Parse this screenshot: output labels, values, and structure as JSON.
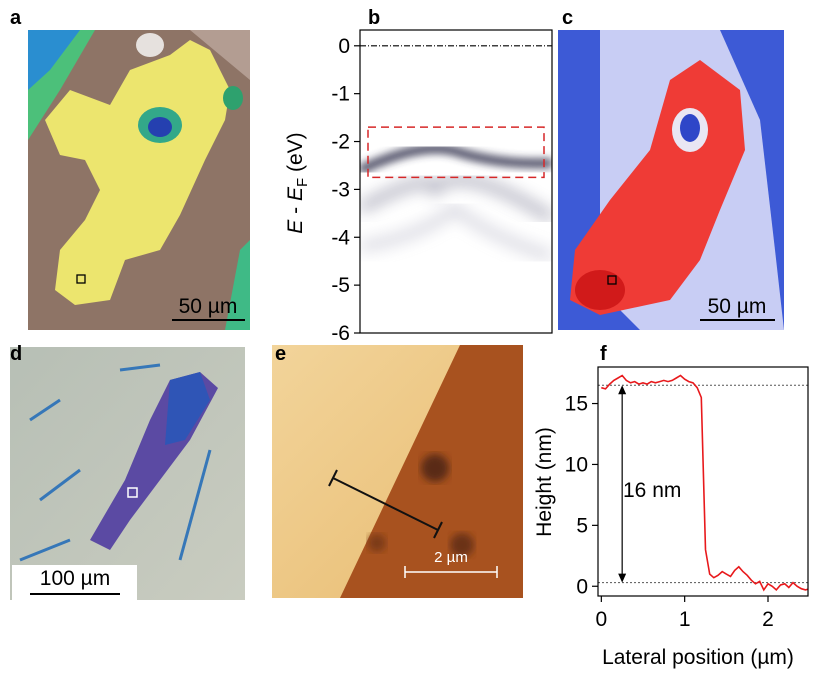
{
  "panel_labels": [
    "a",
    "b",
    "c",
    "d",
    "e",
    "f"
  ],
  "scale_bars": [
    "50 µm",
    "50 µm",
    "100 µm",
    "2 µm"
  ],
  "chart_data": [
    {
      "type": "image",
      "ylabel_var": "E",
      "ylabel_sep": " - ",
      "ylabel_sub": "F",
      "ylabel_unit": " (eV)",
      "ylim": [
        -6,
        0.33
      ],
      "yticks": [
        0,
        -1,
        -2,
        -3,
        -4,
        -5,
        -6
      ],
      "fermi_level": 0,
      "window": [
        -2.75,
        -1.7
      ]
    },
    {
      "type": "line",
      "xlabel": "Lateral position (µm)",
      "ylabel": "Height (nm)",
      "annotation": "16 nm",
      "xlim": [
        -0.04,
        2.48
      ],
      "ylim": [
        -0.8,
        18
      ],
      "xticks": [
        0,
        1,
        2
      ],
      "yticks": [
        0,
        5,
        10,
        15
      ],
      "reference_lines": [
        16.5,
        0.3
      ],
      "color": "#e8191c",
      "x": [
        0,
        0.05,
        0.1,
        0.15,
        0.2,
        0.25,
        0.3,
        0.35,
        0.4,
        0.45,
        0.5,
        0.55,
        0.6,
        0.65,
        0.7,
        0.75,
        0.8,
        0.85,
        0.9,
        0.95,
        1.0,
        1.05,
        1.1,
        1.15,
        1.2,
        1.25,
        1.3,
        1.35,
        1.4,
        1.45,
        1.5,
        1.55,
        1.6,
        1.65,
        1.7,
        1.75,
        1.8,
        1.85,
        1.9,
        1.95,
        2.0,
        2.05,
        2.1,
        2.15,
        2.2,
        2.25,
        2.3,
        2.35,
        2.4,
        2.45,
        2.5
      ],
      "values": [
        16.3,
        16.2,
        16.6,
        16.9,
        17.1,
        17.3,
        16.9,
        16.7,
        16.8,
        16.6,
        16.7,
        16.6,
        16.8,
        16.7,
        16.8,
        16.9,
        16.8,
        16.9,
        17.1,
        17.3,
        17.0,
        16.8,
        16.7,
        16.3,
        15.5,
        3.0,
        1.0,
        0.7,
        0.9,
        1.2,
        1.0,
        0.8,
        1.3,
        1.6,
        1.2,
        0.9,
        0.5,
        0.2,
        0.4,
        -0.3,
        0.2,
        0.0,
        -0.3,
        0.1,
        0.2,
        -0.1,
        0.3,
        0.0,
        -0.2,
        -0.3,
        -0.2
      ]
    }
  ]
}
